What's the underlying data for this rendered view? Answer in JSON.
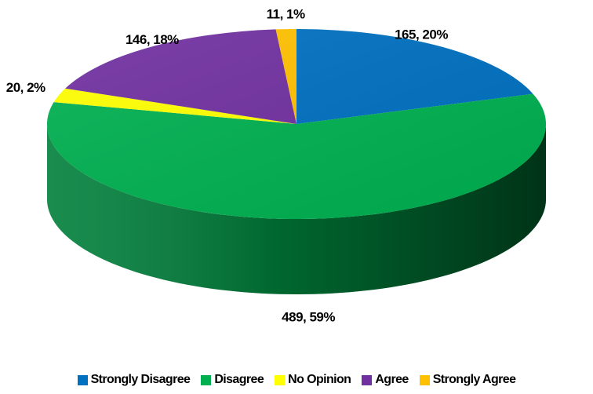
{
  "chart_data": {
    "type": "pie",
    "title": "",
    "three_d": true,
    "categories": [
      "Strongly Disagree",
      "Disagree",
      "No Opinion",
      "Agree",
      "Strongly Agree"
    ],
    "values": [
      165,
      489,
      20,
      146,
      11
    ],
    "percentages": [
      20,
      59,
      2,
      18,
      1
    ],
    "data_labels": [
      "165, 20%",
      "489, 59%",
      "20, 2%",
      "146, 18%",
      "11, 1%"
    ],
    "colors": [
      "#0070c0",
      "#00b050",
      "#ffff00",
      "#7030a0",
      "#ffc000"
    ],
    "legend_position": "bottom",
    "start_angle_deg": 0,
    "direction": "clockwise"
  }
}
